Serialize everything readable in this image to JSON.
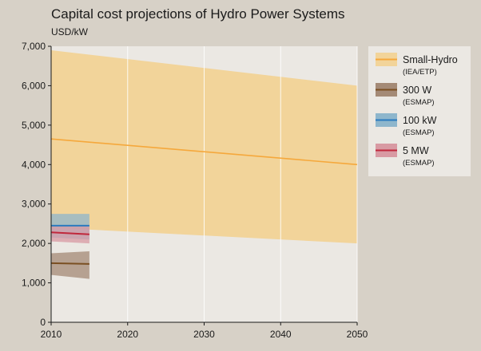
{
  "chart_data": {
    "type": "area",
    "title": "Capital cost projections of Hydro Power Systems",
    "ylabel": "USD/kW",
    "xlabel": "",
    "xlim": [
      2010,
      2050
    ],
    "ylim": [
      0,
      7000
    ],
    "x_ticks": [
      2010,
      2020,
      2030,
      2040,
      2050
    ],
    "y_ticks": [
      0,
      1000,
      2000,
      3000,
      4000,
      5000,
      6000,
      7000
    ],
    "x_tick_labels": [
      "2010",
      "2020",
      "2030",
      "2040",
      "2050"
    ],
    "y_tick_labels": [
      "0",
      "1,000",
      "2,000",
      "3,000",
      "4,000",
      "5,000",
      "6,000",
      "7,000"
    ],
    "grid": "vertical",
    "legend_position": "right",
    "series": [
      {
        "name": "Small-Hydro",
        "source": "(IEA/ETP)",
        "color": "#f5a83c",
        "band_color": "#f2d49a",
        "x": [
          2010,
          2050
        ],
        "central": [
          4650,
          4000
        ],
        "low": [
          2400,
          2000
        ],
        "high": [
          6900,
          6000
        ]
      },
      {
        "name": "300 W",
        "source": "(ESMAP)",
        "color": "#7a4f22",
        "band_color": "#a48a76",
        "x": [
          2010,
          2015
        ],
        "central": [
          1500,
          1480
        ],
        "low": [
          1200,
          1100
        ],
        "high": [
          1750,
          1800
        ]
      },
      {
        "name": "100 kW",
        "source": "(ESMAP)",
        "color": "#2b7bbf",
        "band_color": "#8eb6cc",
        "x": [
          2010,
          2015
        ],
        "central": [
          2450,
          2450
        ],
        "low": [
          2150,
          2100
        ],
        "high": [
          2750,
          2750
        ]
      },
      {
        "name": "5 MW",
        "source": "(ESMAP)",
        "color": "#c0283c",
        "band_color": "#d89aa3",
        "x": [
          2010,
          2015
        ],
        "central": [
          2280,
          2230
        ],
        "low": [
          2050,
          2000
        ],
        "high": [
          2450,
          2450
        ]
      }
    ]
  },
  "colors": {
    "page_background": "#d7d1c7",
    "plot_background": "#ebe8e3",
    "legend_background": "#ebe8e3",
    "grid": "#ffffff"
  }
}
